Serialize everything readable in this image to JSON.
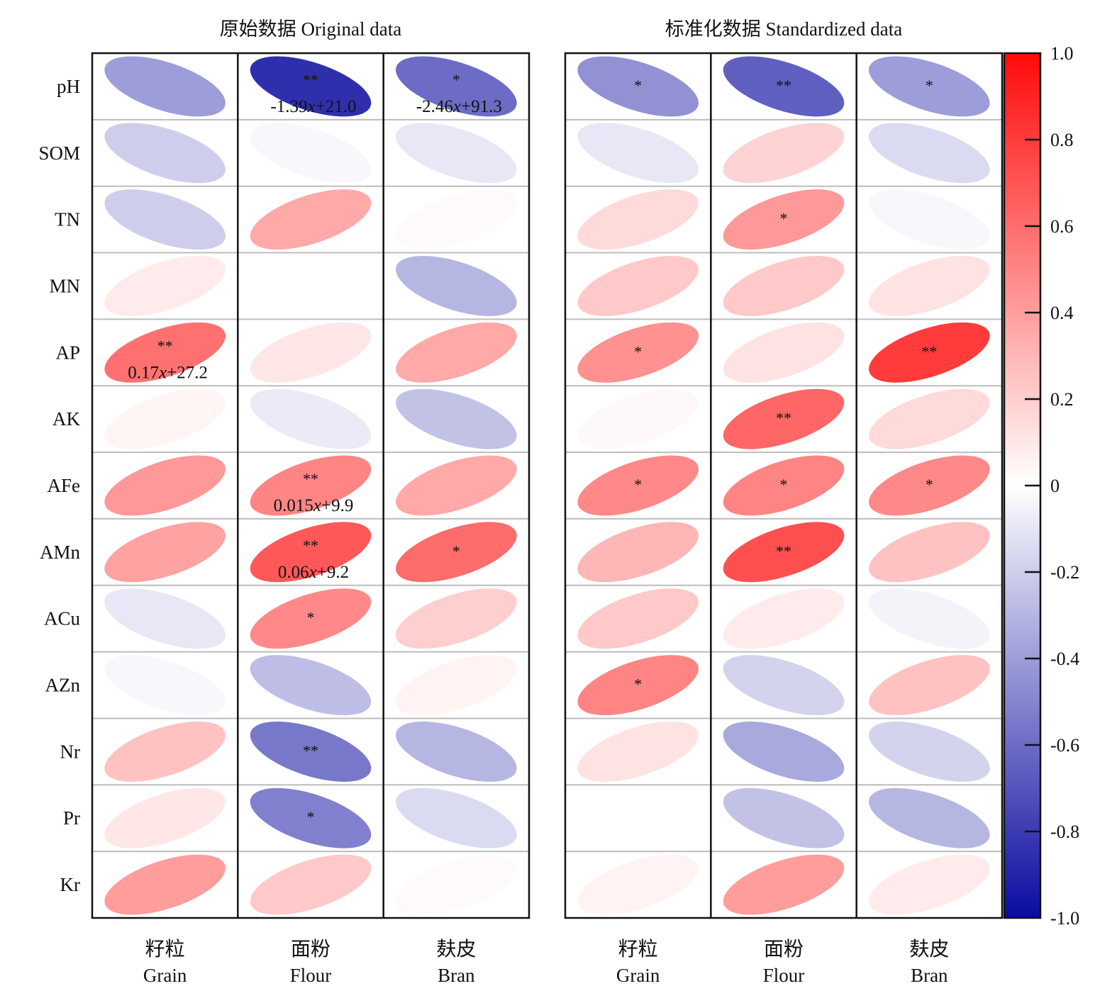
{
  "chart_data": {
    "type": "heatmap",
    "rows": [
      "pH",
      "SOM",
      "TN",
      "MN",
      "AP",
      "AK",
      "AFe",
      "AMn",
      "ACu",
      "AZn",
      "Nr",
      "Pr",
      "Kr"
    ],
    "columns": [
      {
        "zh": "籽粒",
        "en": "Grain"
      },
      {
        "zh": "面粉",
        "en": "Flour"
      },
      {
        "zh": "麸皮",
        "en": "Bran"
      }
    ],
    "panels": [
      {
        "title": "原始数据 Original data",
        "values": [
          [
            -0.4,
            -0.85,
            -0.6
          ],
          [
            -0.2,
            -0.03,
            -0.1
          ],
          [
            -0.2,
            0.35,
            0.02
          ],
          [
            0.08,
            null,
            -0.3
          ],
          [
            0.58,
            0.1,
            0.35
          ],
          [
            0.04,
            -0.08,
            -0.25
          ],
          [
            0.42,
            0.5,
            0.35
          ],
          [
            0.38,
            0.68,
            0.6
          ],
          [
            -0.1,
            0.48,
            0.2
          ],
          [
            -0.03,
            -0.27,
            0.05
          ],
          [
            0.25,
            -0.55,
            -0.3
          ],
          [
            0.1,
            -0.52,
            -0.15
          ],
          [
            0.4,
            0.22,
            0.02
          ]
        ],
        "significance": [
          [
            "",
            "**",
            "*"
          ],
          [
            "",
            "",
            ""
          ],
          [
            "",
            "",
            ""
          ],
          [
            "",
            "",
            ""
          ],
          [
            "**",
            "",
            ""
          ],
          [
            "",
            "",
            ""
          ],
          [
            "",
            "**",
            ""
          ],
          [
            "",
            "**",
            "*"
          ],
          [
            "",
            "*",
            ""
          ],
          [
            "",
            "",
            ""
          ],
          [
            "",
            "**",
            ""
          ],
          [
            "",
            "*",
            ""
          ],
          [
            "",
            "",
            ""
          ]
        ],
        "equations": [
          {
            "row": "pH",
            "col": "Flour",
            "text": "-1.39x+21.0"
          },
          {
            "row": "pH",
            "col": "Bran",
            "text": "-2.46x+91.3"
          },
          {
            "row": "AP",
            "col": "Grain",
            "text": "0.17x+27.2"
          },
          {
            "row": "AFe",
            "col": "Flour",
            "text": "0.015x+9.9"
          },
          {
            "row": "AMn",
            "col": "Flour",
            "text": "0.06x+9.2"
          }
        ]
      },
      {
        "title": "标准化数据 Standardized data",
        "values": [
          [
            -0.45,
            -0.65,
            -0.4
          ],
          [
            -0.1,
            0.18,
            -0.15
          ],
          [
            0.15,
            0.42,
            -0.03
          ],
          [
            0.22,
            0.22,
            0.12
          ],
          [
            0.45,
            0.12,
            0.8
          ],
          [
            0.03,
            0.62,
            0.15
          ],
          [
            0.48,
            0.5,
            0.48
          ],
          [
            0.3,
            0.72,
            0.25
          ],
          [
            0.22,
            0.08,
            -0.05
          ],
          [
            0.5,
            -0.18,
            0.25
          ],
          [
            0.12,
            -0.35,
            -0.18
          ],
          [
            null,
            -0.25,
            -0.3
          ],
          [
            0.05,
            0.4,
            0.08
          ]
        ],
        "significance": [
          [
            "*",
            "**",
            "*"
          ],
          [
            "",
            "",
            ""
          ],
          [
            "",
            "*",
            ""
          ],
          [
            "",
            "",
            ""
          ],
          [
            "*",
            "",
            "**"
          ],
          [
            "",
            "**",
            ""
          ],
          [
            "*",
            "*",
            "*"
          ],
          [
            "",
            "**",
            ""
          ],
          [
            "",
            "",
            ""
          ],
          [
            "*",
            "",
            ""
          ],
          [
            "",
            "",
            ""
          ],
          [
            "",
            "",
            ""
          ],
          [
            "",
            "",
            ""
          ]
        ]
      }
    ],
    "colorbar": {
      "range": [
        -1.0,
        1.0
      ],
      "ticks": [
        "1.0",
        "0.8",
        "0.6",
        "0.4",
        "0.2",
        "0",
        "-0.2",
        "-0.4",
        "-0.6",
        "-0.8",
        "-1.0"
      ],
      "colors": {
        "negative": "#0a0aa0",
        "neutral": "#ffffff",
        "positive": "#ff0a0a"
      }
    },
    "legend_position": "right"
  }
}
